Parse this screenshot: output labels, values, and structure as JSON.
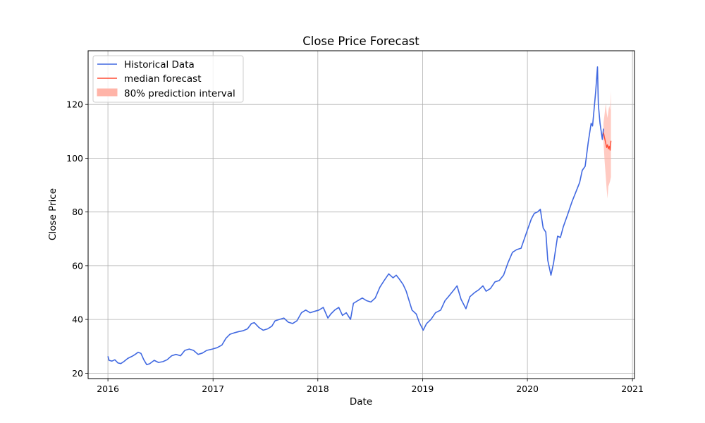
{
  "chart_data": {
    "type": "line",
    "title": "Close Price Forecast",
    "xlabel": "Date",
    "ylabel": "Close Price",
    "xlim": [
      "2015-10-24",
      "2021-01-08"
    ],
    "ylim": [
      18,
      140
    ],
    "x_ticks": [
      {
        "date": "2016-01-01",
        "label": "2016"
      },
      {
        "date": "2017-01-01",
        "label": "2017"
      },
      {
        "date": "2018-01-01",
        "label": "2018"
      },
      {
        "date": "2019-01-01",
        "label": "2019"
      },
      {
        "date": "2020-01-01",
        "label": "2020"
      },
      {
        "date": "2021-01-01",
        "label": "2021"
      }
    ],
    "y_ticks": [
      20,
      40,
      60,
      80,
      100,
      120
    ],
    "grid": true,
    "legend": {
      "position": "top-left",
      "entries": [
        "Historical Data",
        "median forecast",
        "80% prediction interval"
      ]
    },
    "colors": {
      "historical": "#4169e1",
      "median": "#ff4b33",
      "interval": "#ffb4a8"
    },
    "series": [
      {
        "name": "Historical Data",
        "points": [
          [
            "2016-01-01",
            26.3
          ],
          [
            "2016-01-05",
            24.8
          ],
          [
            "2016-01-15",
            24.5
          ],
          [
            "2016-01-25",
            25.0
          ],
          [
            "2016-02-05",
            23.8
          ],
          [
            "2016-02-15",
            23.6
          ],
          [
            "2016-02-25",
            24.3
          ],
          [
            "2016-03-10",
            25.5
          ],
          [
            "2016-03-25",
            26.3
          ],
          [
            "2016-04-05",
            27.0
          ],
          [
            "2016-04-15",
            27.8
          ],
          [
            "2016-04-25",
            27.4
          ],
          [
            "2016-05-05",
            25.0
          ],
          [
            "2016-05-15",
            23.2
          ],
          [
            "2016-05-25",
            23.5
          ],
          [
            "2016-06-10",
            24.8
          ],
          [
            "2016-06-25",
            24.0
          ],
          [
            "2016-07-10",
            24.3
          ],
          [
            "2016-07-25",
            25.0
          ],
          [
            "2016-08-10",
            26.5
          ],
          [
            "2016-08-25",
            27.0
          ],
          [
            "2016-09-10",
            26.5
          ],
          [
            "2016-09-25",
            28.5
          ],
          [
            "2016-10-10",
            29.0
          ],
          [
            "2016-10-25",
            28.5
          ],
          [
            "2016-11-10",
            27.0
          ],
          [
            "2016-11-25",
            27.5
          ],
          [
            "2016-12-10",
            28.5
          ],
          [
            "2016-12-30",
            29.0
          ],
          [
            "2017-01-15",
            29.5
          ],
          [
            "2017-02-01",
            30.5
          ],
          [
            "2017-02-15",
            33.0
          ],
          [
            "2017-03-01",
            34.5
          ],
          [
            "2017-03-15",
            35.0
          ],
          [
            "2017-04-01",
            35.5
          ],
          [
            "2017-04-15",
            35.8
          ],
          [
            "2017-05-01",
            36.5
          ],
          [
            "2017-05-15",
            38.5
          ],
          [
            "2017-05-25",
            38.8
          ],
          [
            "2017-06-10",
            37.0
          ],
          [
            "2017-06-25",
            36.0
          ],
          [
            "2017-07-10",
            36.5
          ],
          [
            "2017-07-25",
            37.5
          ],
          [
            "2017-08-05",
            39.5
          ],
          [
            "2017-08-20",
            40.0
          ],
          [
            "2017-09-05",
            40.5
          ],
          [
            "2017-09-20",
            39.0
          ],
          [
            "2017-10-05",
            38.5
          ],
          [
            "2017-10-20",
            39.5
          ],
          [
            "2017-11-05",
            42.5
          ],
          [
            "2017-11-20",
            43.5
          ],
          [
            "2017-12-05",
            42.5
          ],
          [
            "2017-12-20",
            43.0
          ],
          [
            "2018-01-05",
            43.5
          ],
          [
            "2018-01-20",
            44.5
          ],
          [
            "2018-02-05",
            40.5
          ],
          [
            "2018-02-15",
            42.0
          ],
          [
            "2018-03-01",
            43.5
          ],
          [
            "2018-03-15",
            44.5
          ],
          [
            "2018-03-28",
            41.5
          ],
          [
            "2018-04-10",
            42.5
          ],
          [
            "2018-04-25",
            40.0
          ],
          [
            "2018-05-05",
            46.0
          ],
          [
            "2018-05-20",
            47.0
          ],
          [
            "2018-06-05",
            48.0
          ],
          [
            "2018-06-20",
            47.0
          ],
          [
            "2018-07-05",
            46.5
          ],
          [
            "2018-07-20",
            48.0
          ],
          [
            "2018-08-05",
            52.0
          ],
          [
            "2018-08-20",
            54.5
          ],
          [
            "2018-09-05",
            57.0
          ],
          [
            "2018-09-20",
            55.5
          ],
          [
            "2018-10-01",
            56.5
          ],
          [
            "2018-10-12",
            55.0
          ],
          [
            "2018-10-25",
            53.0
          ],
          [
            "2018-11-05",
            50.5
          ],
          [
            "2018-11-15",
            47.0
          ],
          [
            "2018-11-25",
            43.5
          ],
          [
            "2018-12-10",
            42.0
          ],
          [
            "2018-12-20",
            39.0
          ],
          [
            "2019-01-03",
            36.0
          ],
          [
            "2019-01-15",
            38.5
          ],
          [
            "2019-01-30",
            40.0
          ],
          [
            "2019-02-15",
            42.5
          ],
          [
            "2019-03-05",
            43.5
          ],
          [
            "2019-03-20",
            47.0
          ],
          [
            "2019-04-05",
            49.0
          ],
          [
            "2019-04-20",
            51.0
          ],
          [
            "2019-05-01",
            52.5
          ],
          [
            "2019-05-15",
            47.5
          ],
          [
            "2019-06-01",
            44.0
          ],
          [
            "2019-06-15",
            48.5
          ],
          [
            "2019-07-01",
            50.0
          ],
          [
            "2019-07-15",
            51.0
          ],
          [
            "2019-07-30",
            52.5
          ],
          [
            "2019-08-10",
            50.5
          ],
          [
            "2019-08-25",
            51.5
          ],
          [
            "2019-09-10",
            54.0
          ],
          [
            "2019-09-25",
            54.5
          ],
          [
            "2019-10-10",
            56.5
          ],
          [
            "2019-10-25",
            61.0
          ],
          [
            "2019-11-10",
            65.0
          ],
          [
            "2019-11-25",
            66.0
          ],
          [
            "2019-12-10",
            66.5
          ],
          [
            "2019-12-31",
            73.0
          ],
          [
            "2020-01-15",
            77.5
          ],
          [
            "2020-01-25",
            79.5
          ],
          [
            "2020-02-05",
            80.0
          ],
          [
            "2020-02-15",
            81.0
          ],
          [
            "2020-02-25",
            74.0
          ],
          [
            "2020-03-05",
            72.5
          ],
          [
            "2020-03-12",
            62.0
          ],
          [
            "2020-03-23",
            56.5
          ],
          [
            "2020-04-01",
            61.0
          ],
          [
            "2020-04-15",
            71.0
          ],
          [
            "2020-04-25",
            70.5
          ],
          [
            "2020-05-05",
            74.5
          ],
          [
            "2020-05-20",
            79.0
          ],
          [
            "2020-06-05",
            84.0
          ],
          [
            "2020-06-20",
            88.0
          ],
          [
            "2020-07-01",
            91.0
          ],
          [
            "2020-07-10",
            95.5
          ],
          [
            "2020-07-20",
            97.0
          ],
          [
            "2020-07-31",
            106.0
          ],
          [
            "2020-08-10",
            113.0
          ],
          [
            "2020-08-15",
            112.0
          ],
          [
            "2020-08-20",
            118.0
          ],
          [
            "2020-08-26",
            125.0
          ],
          [
            "2020-09-01",
            134.0
          ],
          [
            "2020-09-04",
            120.0
          ],
          [
            "2020-09-10",
            113.0
          ],
          [
            "2020-09-18",
            107.0
          ],
          [
            "2020-09-22",
            111.0
          ]
        ]
      },
      {
        "name": "median forecast",
        "points": [
          [
            "2020-09-22",
            109.5
          ],
          [
            "2020-09-26",
            107.5
          ],
          [
            "2020-09-30",
            105.5
          ],
          [
            "2020-10-03",
            104.0
          ],
          [
            "2020-10-06",
            105.0
          ],
          [
            "2020-10-09",
            103.5
          ],
          [
            "2020-10-12",
            104.5
          ],
          [
            "2020-10-15",
            103.0
          ],
          [
            "2020-10-18",
            106.5
          ]
        ]
      },
      {
        "name": "80% prediction interval",
        "upper": [
          [
            "2020-09-22",
            113.0
          ],
          [
            "2020-09-26",
            116.5
          ],
          [
            "2020-09-30",
            120.5
          ],
          [
            "2020-10-03",
            117.0
          ],
          [
            "2020-10-06",
            115.0
          ],
          [
            "2020-10-09",
            117.5
          ],
          [
            "2020-10-12",
            119.5
          ],
          [
            "2020-10-15",
            118.0
          ],
          [
            "2020-10-18",
            125.0
          ]
        ],
        "lower": [
          [
            "2020-09-22",
            106.0
          ],
          [
            "2020-09-26",
            99.0
          ],
          [
            "2020-09-30",
            93.0
          ],
          [
            "2020-10-03",
            88.5
          ],
          [
            "2020-10-06",
            85.0
          ],
          [
            "2020-10-09",
            89.5
          ],
          [
            "2020-10-12",
            90.5
          ],
          [
            "2020-10-15",
            91.5
          ],
          [
            "2020-10-18",
            93.0
          ]
        ]
      }
    ]
  }
}
